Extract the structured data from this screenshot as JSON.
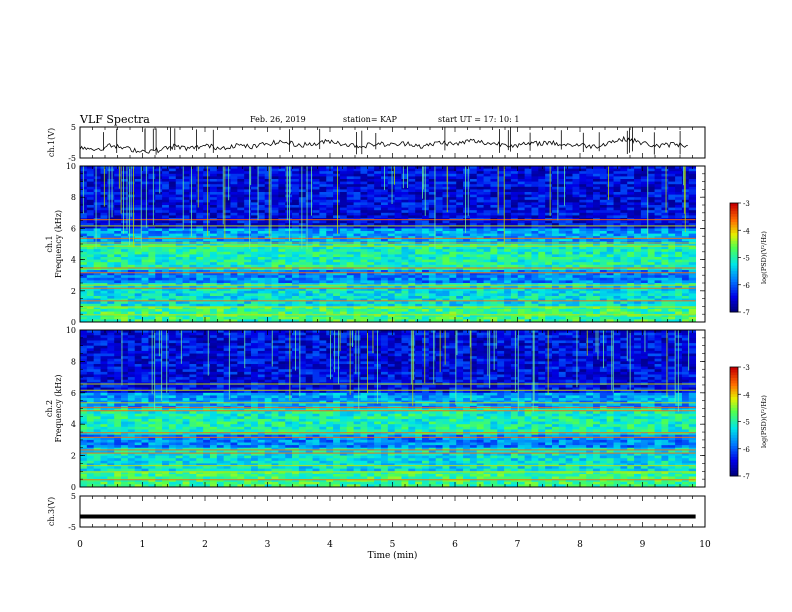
{
  "header": {
    "title": "VLF Spectra",
    "date": "Feb. 26, 2019",
    "station": "station= KAP",
    "start": "start  UT  =   17: 10: 1"
  },
  "chart_data": [
    {
      "type": "line",
      "name": "ch1-waveform",
      "ylabel": "ch.1(V)",
      "ylim": [
        -5,
        5
      ],
      "yticks": [
        "5",
        "-5"
      ],
      "xlim": [
        0,
        10
      ],
      "note_points": "noisy trace near -1 V with spikes",
      "x": [
        0,
        0.25,
        0.5,
        0.75,
        1,
        1.25,
        1.5,
        1.75,
        2,
        2.25,
        2.5,
        2.75,
        3,
        3.25,
        3.5,
        3.75,
        4,
        4.25,
        4.5,
        4.75,
        5,
        5.25,
        5.5,
        5.75,
        6,
        6.25,
        6.5,
        6.75,
        7,
        7.25,
        7.5,
        7.75,
        8,
        8.25,
        8.5,
        8.75,
        9,
        9.25,
        9.5,
        9.75
      ],
      "y": [
        -1.5,
        -2.2,
        -1.0,
        -2.0,
        -2.8,
        -2.5,
        -1.2,
        -2.0,
        -1.0,
        -1.8,
        -0.8,
        -1.5,
        -0.3,
        0.2,
        -0.8,
        -0.5,
        0.5,
        -0.6,
        -1.2,
        -0.4,
        -0.8,
        -0.2,
        -1.4,
        0.1,
        -0.6,
        0.6,
        -0.2,
        -0.5,
        -0.9,
        -0.4,
        0.0,
        -0.7,
        -0.8,
        -1.3,
        0.3,
        1.2,
        -0.2,
        -1.2,
        -0.5,
        -1.0
      ]
    },
    {
      "type": "heatmap",
      "name": "ch1-spectrogram",
      "ylabel": "ch.1\nFrequency  (kHz)",
      "ylim": [
        0,
        10
      ],
      "yticks": [
        "0",
        "2",
        "4",
        "6",
        "8",
        "10"
      ],
      "xlim": [
        0,
        10
      ],
      "colorbar": {
        "label": "log(PSD)(V²/Hz)",
        "range": [
          -7,
          -3
        ],
        "ticks": [
          "-3",
          "-4",
          "-5",
          "-6",
          "-7"
        ]
      }
    },
    {
      "type": "heatmap",
      "name": "ch2-spectrogram",
      "ylabel": "ch.2\nFrequency  (kHz)",
      "ylim": [
        0,
        10
      ],
      "yticks": [
        "0",
        "2",
        "4",
        "6",
        "8",
        "10"
      ],
      "xlim": [
        0,
        10
      ],
      "colorbar": {
        "label": "log(PSD)(V²/Hz)",
        "range": [
          -7,
          -3
        ],
        "ticks": [
          "-3",
          "-4",
          "-5",
          "-6",
          "-7"
        ]
      }
    },
    {
      "type": "line",
      "name": "ch3-waveform",
      "ylabel": "ch.3(V)",
      "ylim": [
        -5,
        5
      ],
      "yticks": [
        "5",
        "-5"
      ],
      "xlim": [
        0,
        10
      ],
      "x": [
        0,
        9.85
      ],
      "y": [
        -1.6,
        -1.6
      ]
    }
  ],
  "xaxis": {
    "label": "Time  (min)",
    "ticks": [
      "0",
      "1",
      "2",
      "3",
      "4",
      "5",
      "6",
      "7",
      "8",
      "9",
      "10"
    ]
  }
}
